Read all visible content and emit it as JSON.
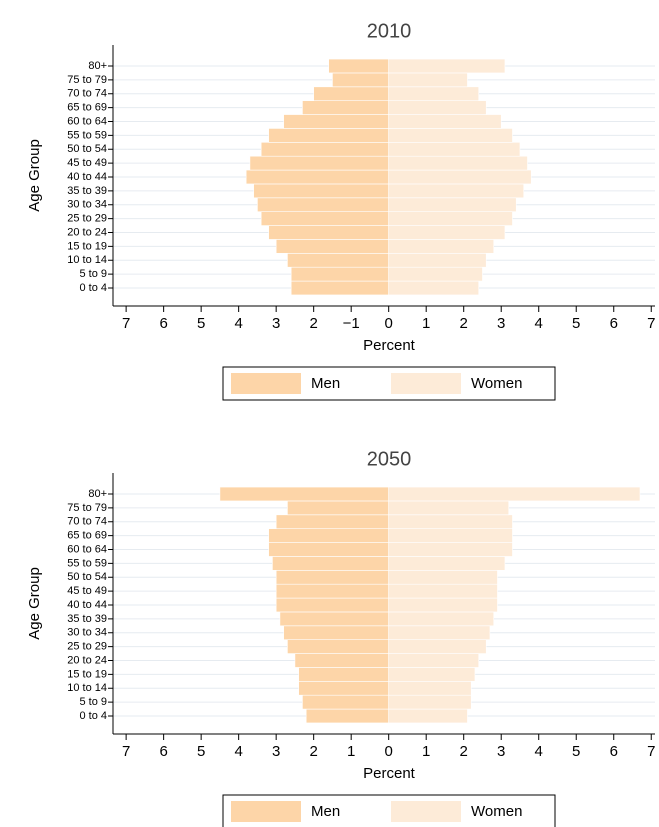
{
  "chart_data": [
    {
      "type": "pyramid",
      "title": "2010",
      "xlabel": "Percent",
      "ylabel": "Age Group",
      "categories": [
        "0 to 4",
        "5 to 9",
        "10 to 14",
        "15 to 19",
        "20 to 24",
        "25 to 29",
        "30 to 34",
        "35 to 39",
        "40 to 44",
        "45 to 49",
        "50 to 54",
        "55 to 59",
        "60 to 64",
        "65 to 69",
        "70 to 74",
        "75 to 79",
        "80+"
      ],
      "series": [
        {
          "name": "Men",
          "color": "#fdd5a8",
          "values": [
            -2.6,
            -2.6,
            -2.7,
            -3.0,
            -3.2,
            -3.4,
            -3.5,
            -3.6,
            -3.8,
            -3.7,
            -3.4,
            -3.2,
            -2.8,
            -2.3,
            -2.0,
            -1.5,
            -1.6
          ]
        },
        {
          "name": "Women",
          "color": "#fdebd8",
          "values": [
            2.4,
            2.5,
            2.6,
            2.8,
            3.1,
            3.3,
            3.4,
            3.6,
            3.8,
            3.7,
            3.5,
            3.3,
            3.0,
            2.6,
            2.4,
            2.1,
            3.1
          ]
        }
      ],
      "xlim": [
        -7.35,
        7.1
      ],
      "xticks": [
        {
          "value": -7,
          "label": "7"
        },
        {
          "value": -6,
          "label": "6"
        },
        {
          "value": -5,
          "label": "5"
        },
        {
          "value": -4,
          "label": "4"
        },
        {
          "value": -3,
          "label": "3"
        },
        {
          "value": -2,
          "label": "2"
        },
        {
          "value": -1,
          "label": "−1"
        },
        0,
        1,
        2,
        3,
        4,
        5,
        6,
        7
      ],
      "grid": true
    },
    {
      "type": "pyramid",
      "title": "2050",
      "xlabel": "Percent",
      "ylabel": "Age Group",
      "categories": [
        "0 to 4",
        "5 to 9",
        "10 to 14",
        "15 to 19",
        "20 to 24",
        "25 to 29",
        "30 to 34",
        "35 to 39",
        "40 to 44",
        "45 to 49",
        "50 to 54",
        "55 to 59",
        "60 to 64",
        "65 to 69",
        "70 to 74",
        "75 to 79",
        "80+"
      ],
      "series": [
        {
          "name": "Men",
          "color": "#fdd5a8",
          "values": [
            -2.2,
            -2.3,
            -2.4,
            -2.4,
            -2.5,
            -2.7,
            -2.8,
            -2.9,
            -3.0,
            -3.0,
            -3.0,
            -3.1,
            -3.2,
            -3.2,
            -3.0,
            -2.7,
            -4.5
          ]
        },
        {
          "name": "Women",
          "color": "#fdebd8",
          "values": [
            2.1,
            2.2,
            2.2,
            2.3,
            2.4,
            2.6,
            2.7,
            2.8,
            2.9,
            2.9,
            2.9,
            3.1,
            3.3,
            3.3,
            3.3,
            3.2,
            6.7
          ]
        }
      ],
      "xlim": [
        -7.35,
        7.1
      ],
      "xticks": [
        {
          "value": -7,
          "label": "7"
        },
        {
          "value": -6,
          "label": "6"
        },
        {
          "value": -5,
          "label": "5"
        },
        {
          "value": -4,
          "label": "4"
        },
        {
          "value": -3,
          "label": "3"
        },
        {
          "value": -2,
          "label": "2"
        },
        {
          "value": -1,
          "label": "1"
        },
        0,
        1,
        2,
        3,
        4,
        5,
        6,
        7
      ],
      "grid": true
    }
  ]
}
